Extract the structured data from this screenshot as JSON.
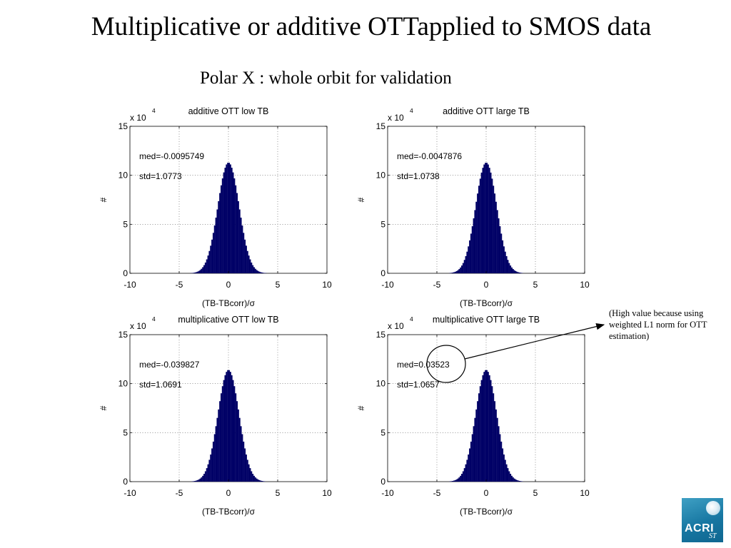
{
  "slide": {
    "title": "Multiplicative or additive OTTapplied to SMOS data",
    "subtitle": "Polar X : whole orbit for validation",
    "note": "(High value because using weighted L1 norm for OTT estimation)",
    "logo_text": "ACRI",
    "logo_suffix": "ST",
    "logo_icon": "globe-icon"
  },
  "chart_data": [
    {
      "type": "bar",
      "title": "additive OTT low TB",
      "xlabel": "(TB-TBcorr)/σ",
      "ylabel": "#",
      "exponent_label": "x 10",
      "exponent": "4",
      "xlim": [
        -10,
        10
      ],
      "ylim": [
        0,
        15
      ],
      "xticks": [
        "-10",
        "-5",
        "0",
        "5",
        "10"
      ],
      "yticks": [
        "0",
        "5",
        "10",
        "15"
      ],
      "grid": true,
      "bar_color": "#000066",
      "annotations": [
        "med=-0.0095749",
        "std=1.0773"
      ],
      "peak": 11.3,
      "center": 0.0,
      "sigma": 1.08
    },
    {
      "type": "bar",
      "title": "additive OTT large TB",
      "xlabel": "(TB-TBcorr)/σ",
      "ylabel": "#",
      "exponent_label": "x 10",
      "exponent": "4",
      "xlim": [
        -10,
        10
      ],
      "ylim": [
        0,
        15
      ],
      "xticks": [
        "-10",
        "-5",
        "0",
        "5",
        "10"
      ],
      "yticks": [
        "0",
        "5",
        "10",
        "15"
      ],
      "grid": true,
      "bar_color": "#000066",
      "annotations": [
        "med=-0.0047876",
        "std=1.0738"
      ],
      "peak": 11.3,
      "center": 0.0,
      "sigma": 1.07
    },
    {
      "type": "bar",
      "title": "multiplicative OTT low TB",
      "xlabel": "(TB-TBcorr)/σ",
      "ylabel": "#",
      "exponent_label": "x 10",
      "exponent": "4",
      "xlim": [
        -10,
        10
      ],
      "ylim": [
        0,
        15
      ],
      "xticks": [
        "-10",
        "-5",
        "0",
        "5",
        "10"
      ],
      "yticks": [
        "0",
        "5",
        "10",
        "15"
      ],
      "grid": true,
      "bar_color": "#000066",
      "annotations": [
        "med=-0.039827",
        "std=1.0691"
      ],
      "peak": 11.4,
      "center": 0.0,
      "sigma": 1.07
    },
    {
      "type": "bar",
      "title": "multiplicative OTT large TB",
      "xlabel": "(TB-TBcorr)/σ",
      "ylabel": "#",
      "exponent_label": "x 10",
      "exponent": "4",
      "xlim": [
        -10,
        10
      ],
      "ylim": [
        0,
        15
      ],
      "xticks": [
        "-10",
        "-5",
        "0",
        "5",
        "10"
      ],
      "yticks": [
        "0",
        "5",
        "10",
        "15"
      ],
      "grid": true,
      "bar_color": "#000066",
      "annotations": [
        "med=0.03523",
        "std=1.0657"
      ],
      "peak": 11.4,
      "center": 0.0,
      "sigma": 1.07
    }
  ]
}
